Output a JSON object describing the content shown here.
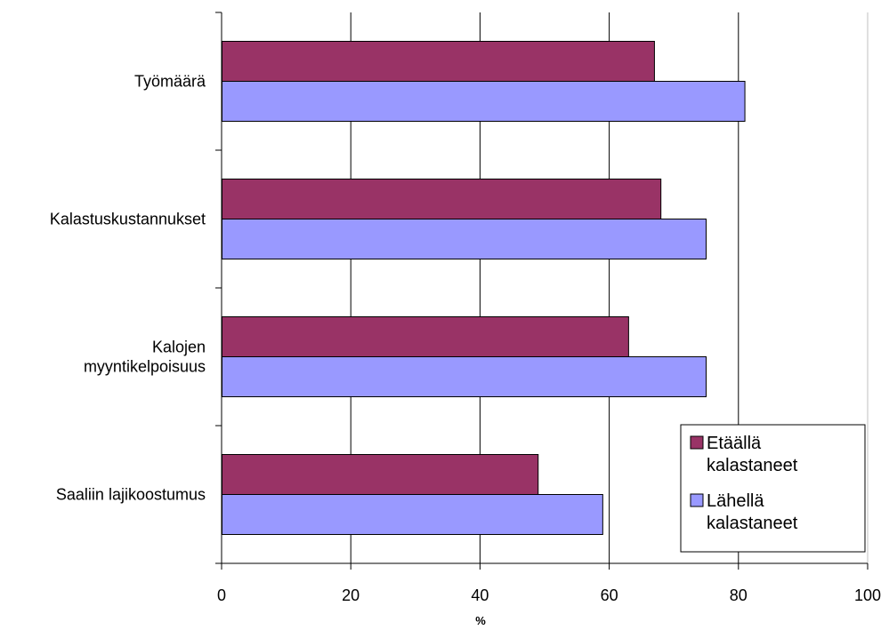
{
  "chart_data": {
    "type": "bar",
    "orientation": "horizontal",
    "categories": [
      [
        "Työmäärä"
      ],
      [
        "Kalastuskustannukset"
      ],
      [
        "Kalojen",
        "myyntikelpoisuus"
      ],
      [
        "Saaliin lajikoostumus"
      ]
    ],
    "series": [
      {
        "name": [
          "Etäällä",
          "kalastaneet"
        ],
        "color": "#993366",
        "values": [
          67,
          68,
          63,
          49
        ]
      },
      {
        "name": [
          "Lähellä",
          "kalastaneet"
        ],
        "color": "#9999ff",
        "values": [
          81,
          75,
          75,
          59
        ]
      }
    ],
    "xlabel": "%",
    "xlim": [
      0,
      100
    ],
    "ticks": [
      "0",
      "20",
      "40",
      "60",
      "80",
      "100"
    ],
    "grid": "vertical",
    "legend": "bottom-right"
  }
}
